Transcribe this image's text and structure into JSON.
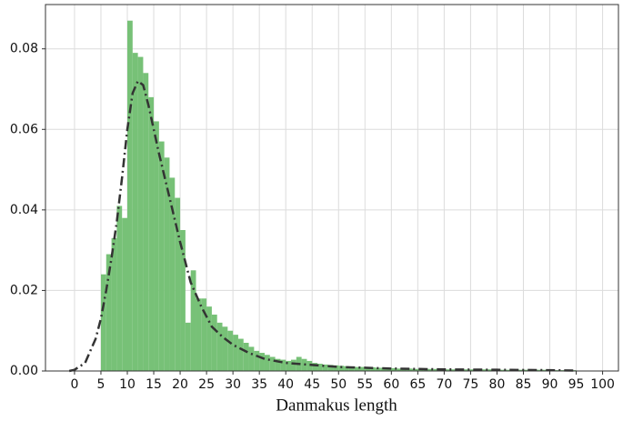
{
  "chart_data": {
    "type": "histogram",
    "x_label": "Danmakus length",
    "bins": [
      5,
      6,
      7,
      8,
      9,
      10,
      11,
      12,
      13,
      14,
      15,
      16,
      17,
      18,
      19,
      20,
      21,
      22,
      23,
      24,
      25,
      26,
      27,
      28,
      29,
      30,
      31,
      32,
      33,
      34,
      35,
      36,
      37,
      38,
      39,
      40,
      41,
      42,
      43,
      44,
      45,
      46,
      47,
      48,
      49,
      50,
      51,
      52,
      53,
      54,
      55,
      56,
      57,
      58,
      59,
      60,
      61,
      62,
      63,
      64,
      65,
      66,
      67,
      68,
      69,
      70,
      71,
      72,
      73,
      74,
      75,
      76,
      77,
      78,
      79,
      80,
      81,
      82,
      83,
      84,
      85,
      86,
      87,
      88,
      89,
      90,
      91,
      92,
      93,
      94,
      95
    ],
    "counts": [
      0.024,
      0.029,
      0.033,
      0.041,
      0.038,
      0.087,
      0.079,
      0.078,
      0.074,
      0.068,
      0.062,
      0.057,
      0.053,
      0.048,
      0.043,
      0.035,
      0.012,
      0.025,
      0.018,
      0.018,
      0.016,
      0.014,
      0.012,
      0.011,
      0.01,
      0.009,
      0.008,
      0.007,
      0.006,
      0.005,
      0.0045,
      0.004,
      0.0035,
      0.003,
      0.0028,
      0.0025,
      0.0028,
      0.0035,
      0.003,
      0.0025,
      0.002,
      0.0018,
      0.0016,
      0.0015,
      0.0014,
      0.0013,
      0.0012,
      0.0011,
      0.001,
      0.001,
      0.0009,
      0.0009,
      0.0008,
      0.0008,
      0.0007,
      0.0007,
      0.0006,
      0.0006,
      0.0006,
      0.0005,
      0.0005,
      0.0005,
      0.0005,
      0.0005,
      0.0005,
      0.0004,
      0.0004,
      0.0004,
      0.0004,
      0.0004,
      0.0004,
      0.0004,
      0.0004,
      0.0004,
      0.0004,
      0.0003,
      0.0003,
      0.0003,
      0.0003,
      0.0003,
      0.0003,
      0.0003,
      0.0003,
      0.0003,
      0.0003,
      0.0002,
      0.0002,
      0.0002,
      0.0002,
      0.0002
    ],
    "color": "#77c177",
    "density_line": {
      "color": "#333333",
      "x": [
        -1,
        0,
        2,
        4,
        5,
        6,
        7,
        8,
        9,
        10,
        11,
        12,
        13,
        14,
        15,
        16,
        18,
        20,
        22,
        24,
        26,
        28,
        30,
        33,
        36,
        40,
        45,
        50,
        60,
        70,
        80,
        90,
        95
      ],
      "values": [
        0,
        0.0003,
        0.002,
        0.008,
        0.013,
        0.02,
        0.028,
        0.037,
        0.048,
        0.06,
        0.069,
        0.072,
        0.071,
        0.066,
        0.06,
        0.054,
        0.043,
        0.032,
        0.022,
        0.016,
        0.011,
        0.0085,
        0.0065,
        0.0045,
        0.003,
        0.002,
        0.0015,
        0.001,
        0.0006,
        0.0004,
        0.0003,
        0.0002,
        0.0001
      ]
    },
    "xlim": [
      -5.5,
      103
    ],
    "ylim": [
      0,
      0.091
    ],
    "xticks": [
      0,
      5,
      10,
      15,
      20,
      25,
      30,
      35,
      40,
      45,
      50,
      55,
      60,
      65,
      70,
      75,
      80,
      85,
      90,
      95,
      100
    ],
    "yticks": [
      {
        "value": 0,
        "label": "0.00"
      },
      {
        "value": 0.02,
        "label": "0.02"
      },
      {
        "value": 0.04,
        "label": "0.04"
      },
      {
        "value": 0.06,
        "label": "0.06"
      },
      {
        "value": 0.08,
        "label": "0.08"
      }
    ],
    "grid": true
  }
}
